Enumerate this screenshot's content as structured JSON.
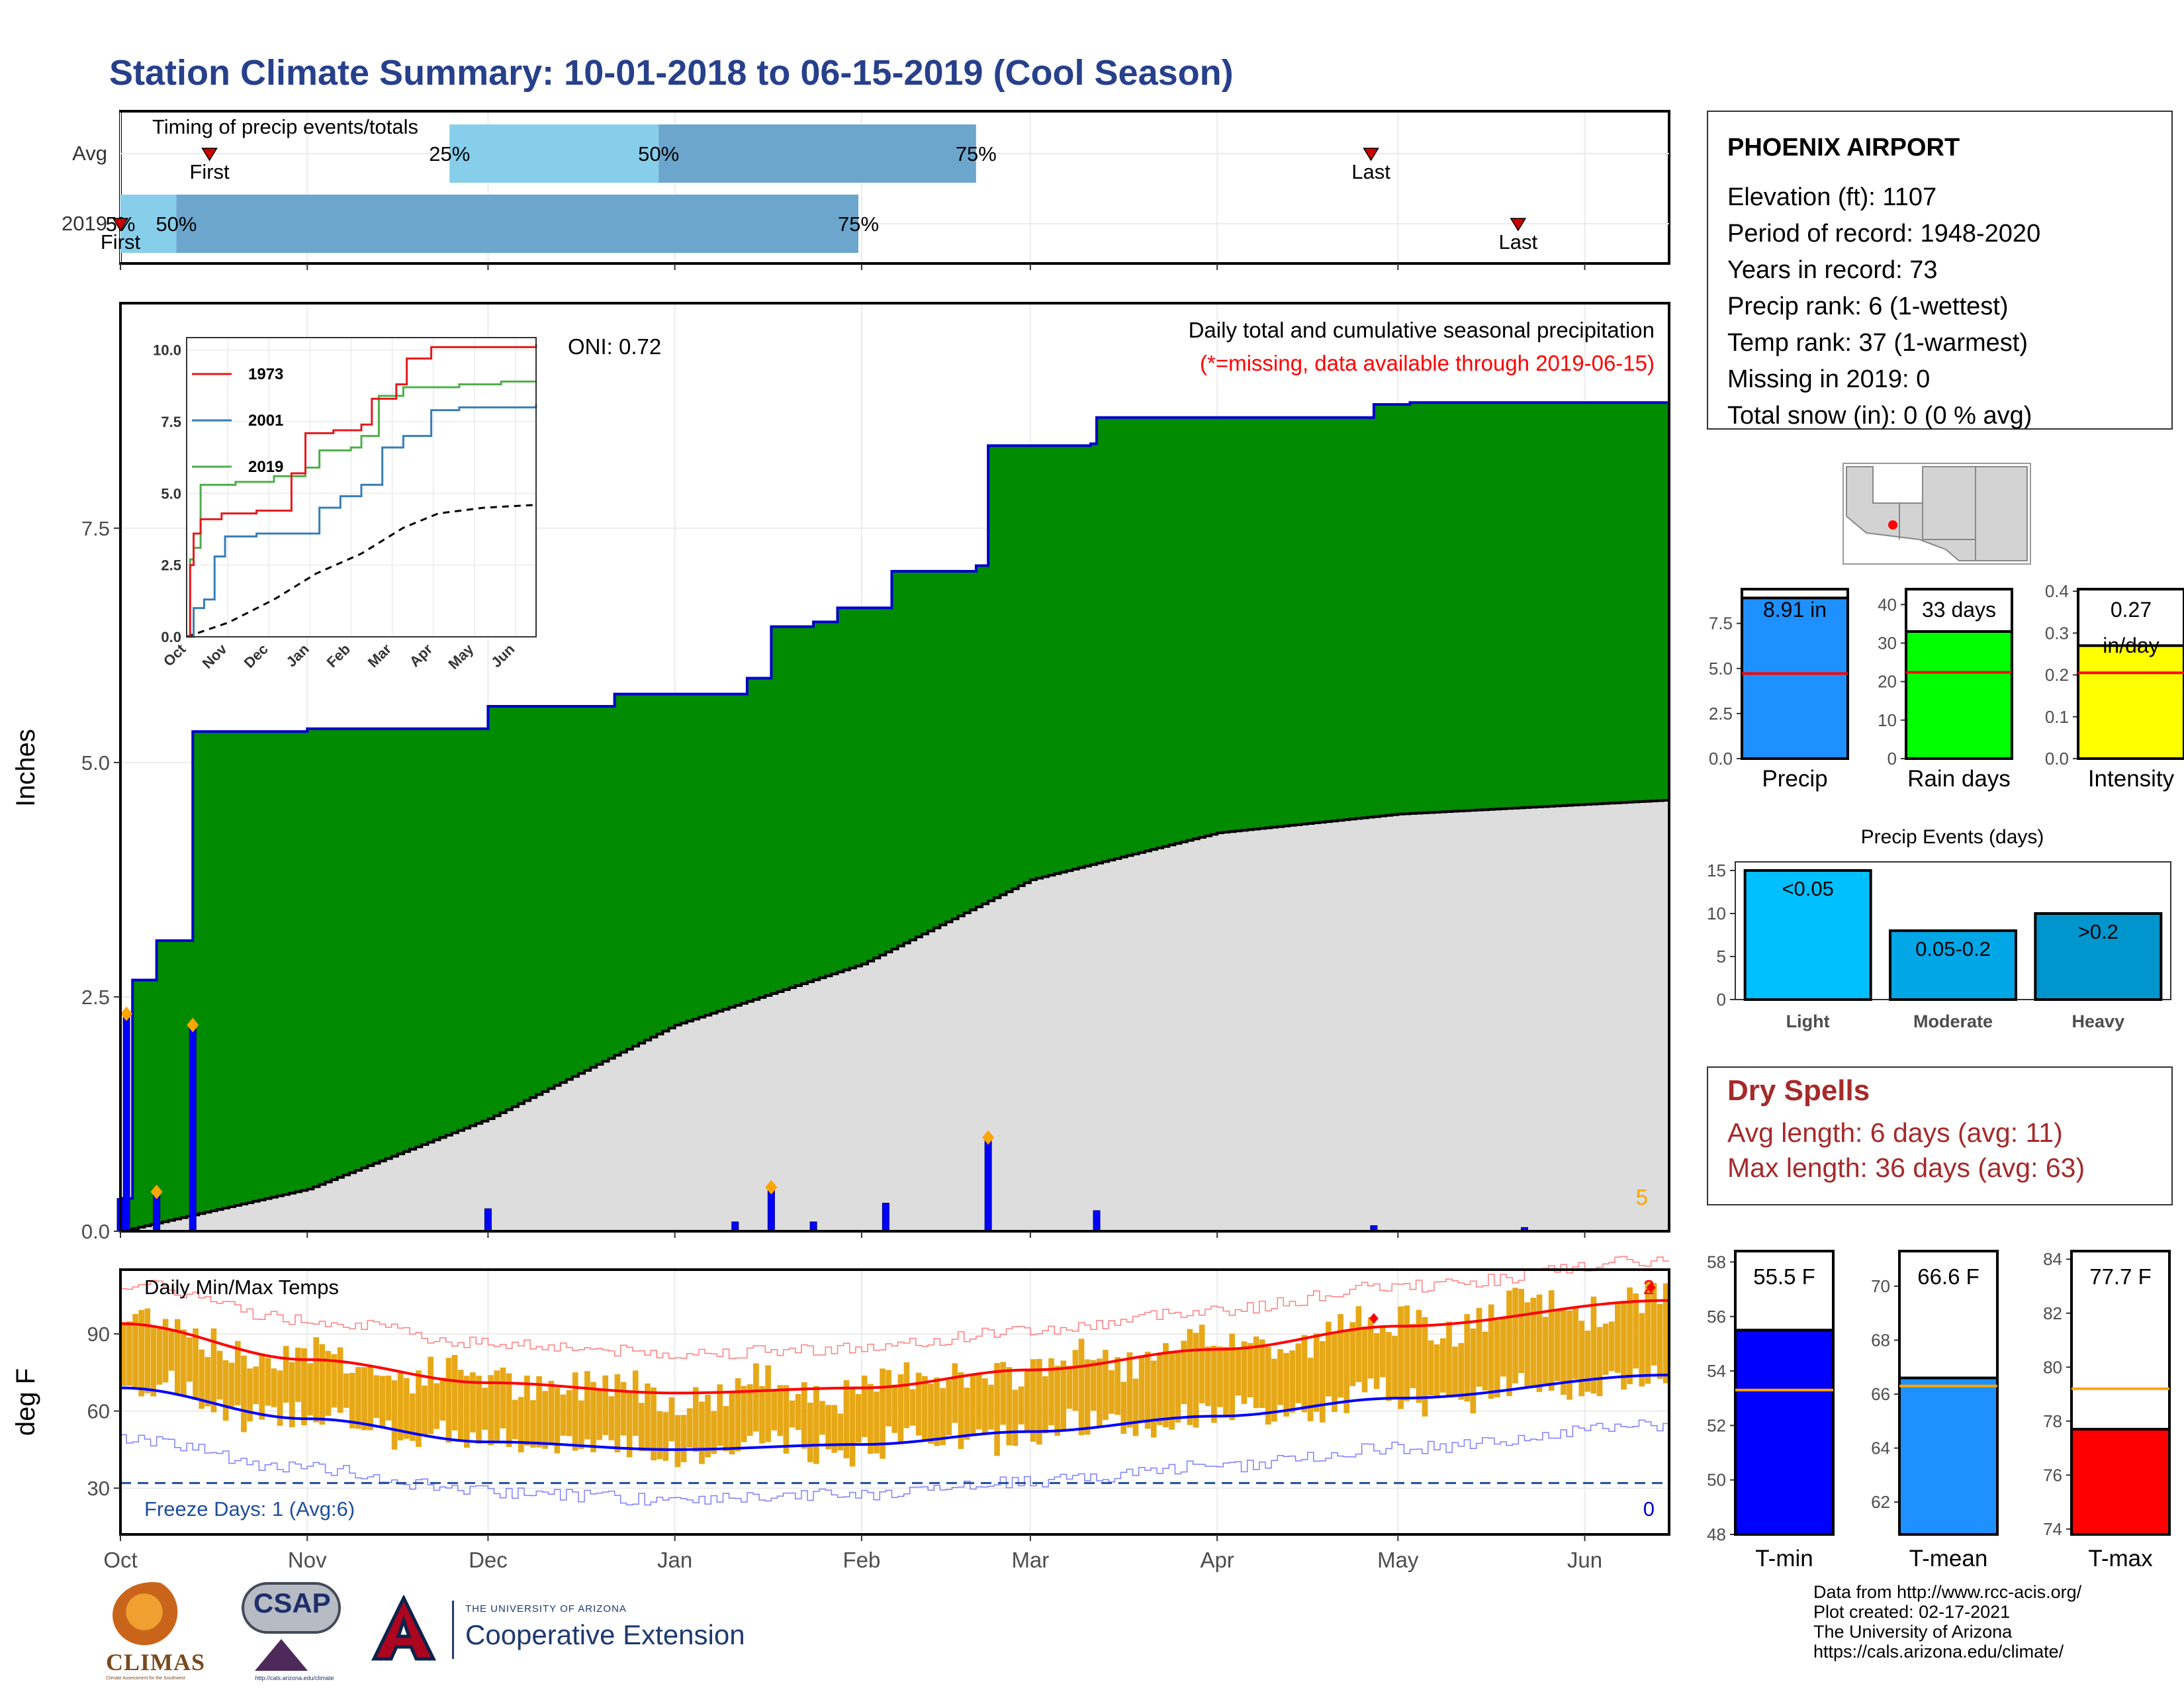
{
  "title": "Station Climate Summary: 10-01-2018 to 06-15-2019 (Cool Season)",
  "timing": {
    "title": "Timing of precip events/totals",
    "rows": [
      {
        "label": "Avg",
        "segments": [
          [
            0.2125,
            0.3475
          ],
          [
            0.3475,
            0.5525
          ]
        ],
        "pct_labels": [
          {
            "text": "25%",
            "x": 0.2125
          },
          {
            "text": "50%",
            "x": 0.3475
          },
          {
            "text": "75%",
            "x": 0.5525
          }
        ],
        "first": {
          "label": "First",
          "x": 0.0575
        },
        "last": {
          "label": "Last",
          "x": 0.8075
        }
      },
      {
        "label": "2019",
        "segments": [
          [
            0.0,
            0.0361
          ],
          [
            0.0361,
            0.4765
          ]
        ],
        "pct_labels": [
          {
            "text": "5%",
            "x": 0.0
          },
          {
            "text": "50%",
            "x": 0.0361
          },
          {
            "text": "75%",
            "x": 0.4765
          }
        ],
        "first": {
          "label": "First",
          "x": 0.0
        },
        "last": {
          "label": "Last",
          "x": 0.9025
        }
      }
    ]
  },
  "main": {
    "ylabel": "Inches",
    "note_title": "Daily total and cumulative seasonal precipitation",
    "note_missing": "(*=missing, data available through 2019-06-15)",
    "oni": "ONI: 0.72",
    "corner_label": "5",
    "yticks": [
      "0.0",
      "2.5",
      "5.0",
      "7.5"
    ]
  },
  "months": [
    "Oct",
    "Nov",
    "Dec",
    "Jan",
    "Feb",
    "Mar",
    "Apr",
    "May",
    "Jun"
  ],
  "inset": {
    "legend": [
      {
        "name": "1973",
        "color": "#e41a1c"
      },
      {
        "name": "2001",
        "color": "#377eb8"
      },
      {
        "name": "2019",
        "color": "#4daf4a"
      }
    ],
    "yticks": [
      "0.0",
      "2.5",
      "5.0",
      "7.5",
      "10.0"
    ],
    "xticks": [
      "Oct",
      "Nov",
      "Dec",
      "Jan",
      "Feb",
      "Mar",
      "Apr",
      "May",
      "Jun"
    ]
  },
  "temps": {
    "title": "Daily Min/Max Temps",
    "ylabel": "deg F",
    "yticks": [
      "30",
      "60",
      "90"
    ],
    "freeze_label": "Freeze Days: 1 (Avg:6)",
    "freeze_count": "0",
    "record_count": "2"
  },
  "station": {
    "name": "PHOENIX AIRPORT",
    "lines": [
      "Elevation (ft): 1107",
      "Period of record: 1948-2020",
      "Years in record: 73",
      "Precip rank: 6 (1-wettest)",
      "Temp rank: 37 (1-warmest)",
      "Missing in 2019: 0",
      "Total snow (in): 0 (0 % avg)"
    ]
  },
  "summary_bars": [
    {
      "label": "Precip",
      "value_text": "8.91 in",
      "value": 8.91,
      "avg": 4.72,
      "max": 9.4,
      "color": "#1e90ff",
      "yticks": [
        "0.0",
        "2.5",
        "5.0",
        "7.5"
      ],
      "ytick_vals": [
        0,
        2.5,
        5,
        7.5
      ]
    },
    {
      "label": "Rain days",
      "value_text": "33 days",
      "value": 33,
      "avg": 22.4,
      "max": 44,
      "color": "#00ff00",
      "yticks": [
        "0",
        "10",
        "20",
        "30",
        "40"
      ],
      "ytick_vals": [
        0,
        10,
        20,
        30,
        40
      ]
    },
    {
      "label": "Intensity",
      "value_text": "0.27",
      "value_text2": "in/day",
      "value": 0.27,
      "avg": 0.205,
      "max": 0.405,
      "color": "#ffff00",
      "yticks": [
        "0.0",
        "0.1",
        "0.2",
        "0.3",
        "0.4"
      ],
      "ytick_vals": [
        0,
        0.1,
        0.2,
        0.3,
        0.4
      ]
    }
  ],
  "precip_events": {
    "title": "Precip Events (days)",
    "yticks": [
      "0",
      "5",
      "10",
      "15"
    ],
    "bars": [
      {
        "label": "Light",
        "value": 15,
        "text": "<0.05",
        "color": "#00bfff"
      },
      {
        "label": "Moderate",
        "value": 8,
        "text": "0.05-0.2",
        "color": "#00a6e6"
      },
      {
        "label": "Heavy",
        "value": 10,
        "text": ">0.2",
        "color": "#0095cc"
      }
    ]
  },
  "dry_spells": {
    "title": "Dry Spells",
    "avg": "Avg length: 6 days (avg: 11)",
    "max": "Max length: 36 days (avg: 63)"
  },
  "temp_bars": [
    {
      "label": "T-min",
      "value_text": "55.5 F",
      "value": 55.5,
      "avg": 53.3,
      "min": 48,
      "max": 58.4,
      "color": "#0000ff",
      "yticks": [
        "48",
        "50",
        "52",
        "54",
        "56",
        "58"
      ],
      "ytick_vals": [
        48,
        50,
        52,
        54,
        56,
        58
      ]
    },
    {
      "label": "T-mean",
      "value_text": "66.6 F",
      "value": 66.6,
      "avg": 66.3,
      "min": 60.8,
      "max": 71.3,
      "color": "#1e90ff",
      "yticks": [
        "62",
        "64",
        "66",
        "68",
        "70"
      ],
      "ytick_vals": [
        62,
        64,
        66,
        68,
        70
      ]
    },
    {
      "label": "T-max",
      "value_text": "77.7 F",
      "value": 77.7,
      "avg": 79.2,
      "min": 73.8,
      "max": 84.3,
      "color": "#ff0000",
      "yticks": [
        "74",
        "76",
        "78",
        "80",
        "82",
        "84"
      ],
      "ytick_vals": [
        74,
        76,
        78,
        80,
        82,
        84
      ]
    }
  ],
  "footer": [
    "Data from http://www.rcc-acis.org/",
    "Plot created: 02-17-2021",
    "The University of Arizona",
    "https://cals.arizona.edu/climate/"
  ],
  "logos": {
    "climas_word": "CLIMAS",
    "climas_tag": "Climate Assessment for the Southwest",
    "csap_word": "CSAP",
    "csap_url": "http://cals.arizona.edu/climate",
    "ua_small": "THE UNIVERSITY OF ARIZONA",
    "ua_big": "Cooperative Extension"
  },
  "colors": {
    "title": "#27408b",
    "green_fill": "#008b00",
    "cum_line": "#0000cd",
    "avg_fill": "#dddddd",
    "orange": "#ffa500",
    "dry_red": "#a52a2a",
    "temp_bar": "#e6a817",
    "tmax_avg": "#ff0000",
    "tmin_avg": "#0000ff",
    "bar_light": "#87ceeb",
    "bar_mid": "#6ca6cd"
  },
  "chart_data": [
    {
      "type": "area",
      "title": "Daily total and cumulative seasonal precipitation",
      "ylabel": "Inches",
      "x_label_units": "date",
      "xlim": [
        "2018-10-01",
        "2019-06-15"
      ],
      "ylim": [
        0,
        9.9
      ],
      "series": [
        {
          "name": "cumulative 2019",
          "x": [
            "2018-10-01",
            "2018-10-03",
            "2018-10-07",
            "2018-10-13",
            "2018-11-01",
            "2018-12-01",
            "2018-12-22",
            "2019-01-13",
            "2019-01-17",
            "2019-01-24",
            "2019-01-28",
            "2019-02-02",
            "2019-02-06",
            "2019-02-20",
            "2019-02-22",
            "2019-03-11",
            "2019-03-12",
            "2019-04-01",
            "2019-04-27",
            "2019-05-03",
            "2019-06-15"
          ],
          "y": [
            0.35,
            2.68,
            3.1,
            5.33,
            5.36,
            5.6,
            5.73,
            5.9,
            6.45,
            6.5,
            6.65,
            6.65,
            7.04,
            7.1,
            8.38,
            8.4,
            8.68,
            8.68,
            8.82,
            8.84,
            8.91
          ]
        },
        {
          "name": "average cumulative",
          "x": [
            "2018-10-01",
            "2018-11-01",
            "2018-12-01",
            "2019-01-01",
            "2019-02-01",
            "2019-03-01",
            "2019-04-01",
            "2019-05-01",
            "2019-06-15"
          ],
          "y": [
            0.0,
            0.45,
            1.2,
            2.2,
            2.85,
            3.75,
            4.25,
            4.45,
            4.6
          ]
        },
        {
          "name": "daily precip",
          "x": [
            "2018-10-01",
            "2018-10-02",
            "2018-10-07",
            "2018-10-13",
            "2018-12-01",
            "2019-01-11",
            "2019-01-17",
            "2019-01-24",
            "2019-02-05",
            "2019-02-22",
            "2019-03-12",
            "2019-04-27",
            "2019-05-22"
          ],
          "y": [
            0.35,
            2.32,
            0.42,
            2.2,
            0.24,
            0.1,
            0.47,
            0.1,
            0.3,
            1.0,
            0.22,
            0.06,
            0.04
          ]
        }
      ]
    },
    {
      "type": "line",
      "title": "",
      "inset": true,
      "ylim": [
        0,
        10.2
      ],
      "series": [
        {
          "name": "1973",
          "y_end": 10.2
        },
        {
          "name": "2001",
          "y_end": 8.1
        },
        {
          "name": "2019",
          "y_end": 8.91
        }
      ]
    },
    {
      "type": "line",
      "title": "Daily Min/Max Temps",
      "ylabel": "deg F",
      "ylim": [
        12,
        115
      ],
      "series": [
        {
          "name": "avg max",
          "x": [
            "2018-10-01",
            "2018-11-01",
            "2018-12-01",
            "2019-01-01",
            "2019-02-01",
            "2019-03-01",
            "2019-04-01",
            "2019-05-01",
            "2019-06-15"
          ],
          "y": [
            94,
            80,
            71,
            67,
            69,
            76,
            84,
            93,
            103
          ]
        },
        {
          "name": "avg min",
          "x": [
            "2018-10-01",
            "2018-11-01",
            "2018-12-01",
            "2019-01-01",
            "2019-02-01",
            "2019-03-01",
            "2019-04-01",
            "2019-05-01",
            "2019-06-15"
          ],
          "y": [
            69,
            57,
            48,
            45,
            47,
            52,
            58,
            65,
            74
          ]
        }
      ]
    },
    {
      "type": "bar",
      "title": "Precip Events (days)",
      "categories": [
        "Light",
        "Moderate",
        "Heavy"
      ],
      "values": [
        15,
        8,
        10
      ],
      "ylim": [
        0,
        16
      ]
    }
  ]
}
